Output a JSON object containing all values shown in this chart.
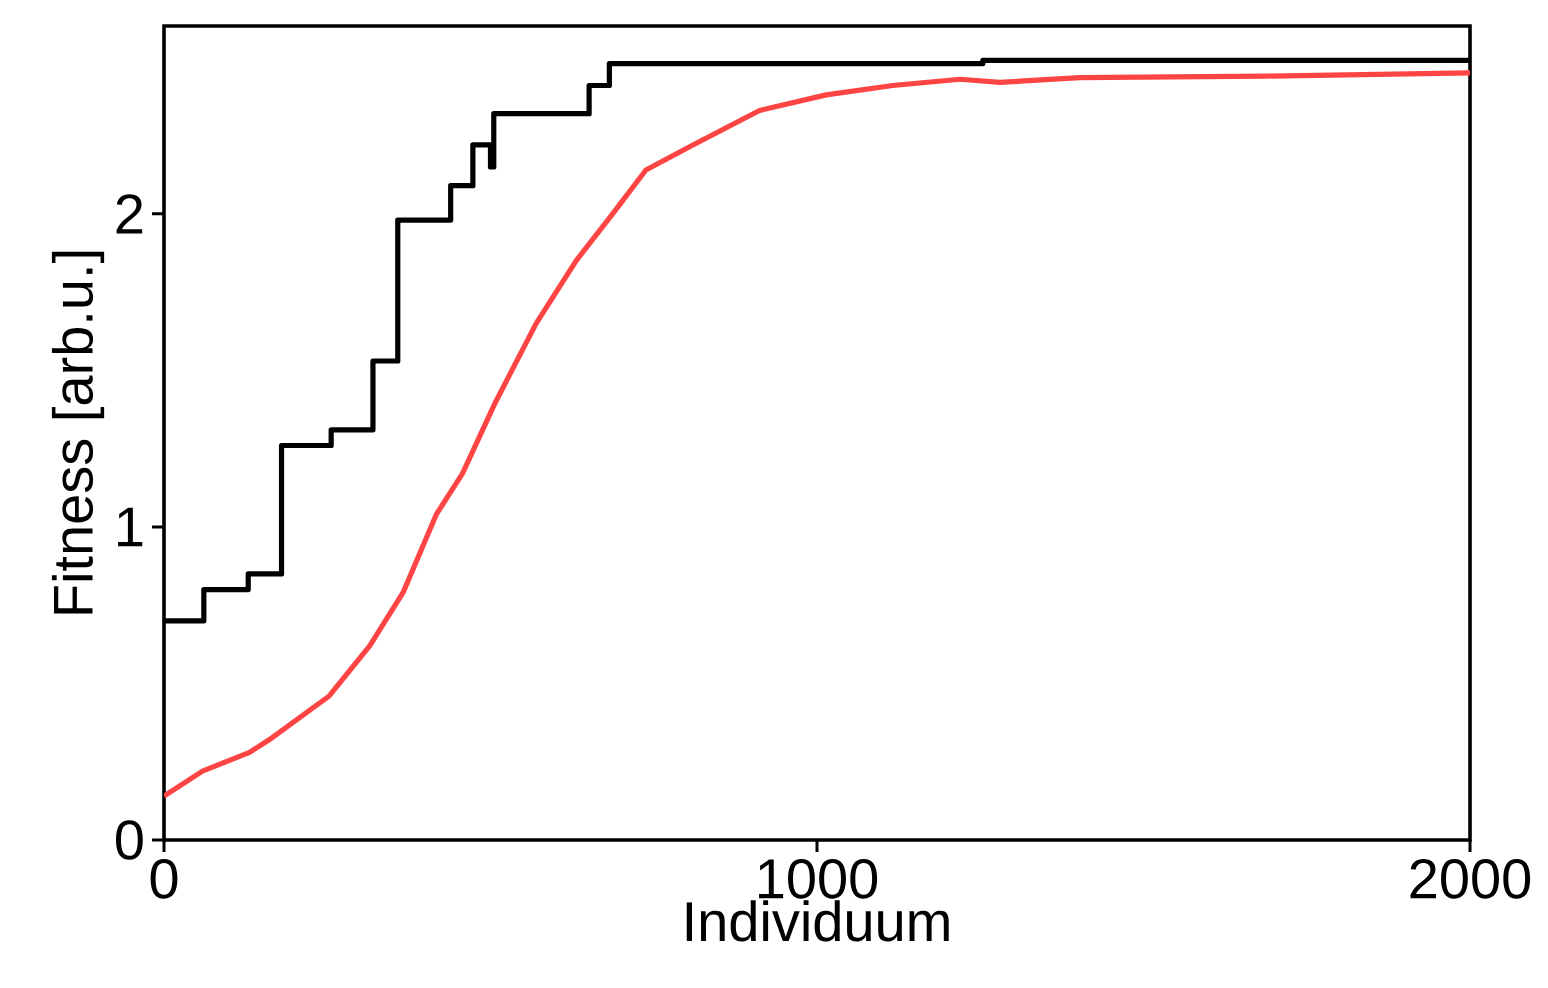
{
  "chart_data": {
    "type": "line",
    "xlabel": "Individuum",
    "ylabel": "Fitness [arb.u.]",
    "xlim": [
      0,
      2000
    ],
    "ylim": [
      0,
      2.6
    ],
    "xticks": [
      0,
      1000,
      2000
    ],
    "yticks": [
      0,
      1,
      2
    ],
    "grid": false,
    "series": [
      {
        "type": "step",
        "color": "#000000",
        "x": [
          0,
          61,
          129,
          180,
          256,
          320,
          358,
          439,
          473,
          500,
          505,
          651,
          682,
          1254,
          2000
        ],
        "values": [
          0.7,
          0.8,
          0.85,
          1.26,
          1.31,
          1.53,
          1.98,
          2.09,
          2.22,
          2.15,
          2.32,
          2.41,
          2.48,
          2.49,
          2.49
        ]
      },
      {
        "color": "#ff4444",
        "x": [
          0,
          59,
          131,
          161,
          253,
          315,
          366,
          417,
          457,
          508,
          570,
          631,
          687,
          738,
          810,
          912,
          1014,
          1116,
          1219,
          1280,
          1402,
          1688,
          2000
        ],
        "values": [
          0.14,
          0.22,
          0.28,
          0.32,
          0.46,
          0.62,
          0.79,
          1.04,
          1.17,
          1.4,
          1.65,
          1.85,
          2.0,
          2.14,
          2.22,
          2.33,
          2.38,
          2.41,
          2.43,
          2.42,
          2.435,
          2.44,
          2.45
        ]
      }
    ]
  }
}
